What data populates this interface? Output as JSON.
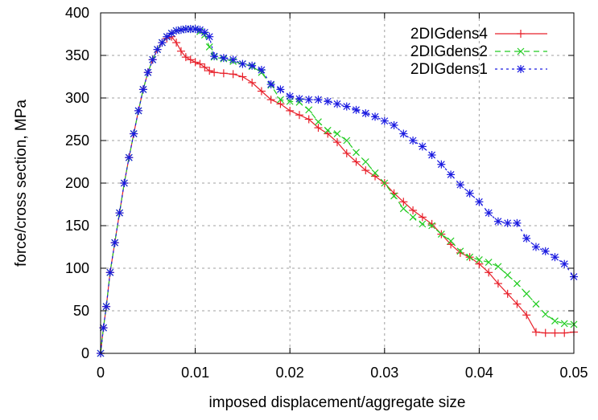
{
  "chart_data": {
    "type": "line",
    "xlabel": "imposed displacement/aggregate size",
    "ylabel": "force/cross section, MPa",
    "xlim": [
      0,
      0.05
    ],
    "ylim": [
      0,
      400
    ],
    "xticks": [
      0,
      0.01,
      0.02,
      0.03,
      0.04,
      0.05
    ],
    "xtick_labels": [
      "0",
      "0.01",
      "0.02",
      "0.03",
      "0.04",
      "0.05"
    ],
    "yticks": [
      0,
      50,
      100,
      150,
      200,
      250,
      300,
      350,
      400
    ],
    "ytick_labels": [
      "0",
      "50",
      "100",
      "150",
      "200",
      "250",
      "300",
      "350",
      "400"
    ],
    "grid": true,
    "legend_position": "top-right",
    "series": [
      {
        "name": "2DIGdens4",
        "color": "#e8202a",
        "marker": "plus",
        "line": "solid",
        "x": [
          0,
          0.0003,
          0.0006,
          0.001,
          0.0015,
          0.002,
          0.0025,
          0.003,
          0.0035,
          0.004,
          0.0045,
          0.005,
          0.0055,
          0.006,
          0.0065,
          0.007,
          0.0075,
          0.008,
          0.0085,
          0.009,
          0.0095,
          0.01,
          0.0105,
          0.011,
          0.0115,
          0.012,
          0.013,
          0.014,
          0.015,
          0.016,
          0.017,
          0.018,
          0.019,
          0.02,
          0.021,
          0.022,
          0.023,
          0.024,
          0.025,
          0.026,
          0.027,
          0.028,
          0.029,
          0.03,
          0.031,
          0.032,
          0.033,
          0.034,
          0.035,
          0.036,
          0.037,
          0.038,
          0.039,
          0.04,
          0.041,
          0.042,
          0.043,
          0.044,
          0.045,
          0.046,
          0.047,
          0.048,
          0.049,
          0.05
        ],
        "y": [
          0,
          30,
          55,
          95,
          130,
          165,
          200,
          230,
          258,
          285,
          310,
          330,
          345,
          357,
          365,
          370,
          372,
          365,
          355,
          348,
          345,
          342,
          340,
          336,
          332,
          330,
          329,
          328,
          325,
          318,
          308,
          298,
          293,
          285,
          280,
          275,
          265,
          258,
          248,
          235,
          225,
          215,
          208,
          200,
          188,
          178,
          168,
          160,
          152,
          140,
          128,
          118,
          113,
          105,
          95,
          82,
          70,
          58,
          45,
          25,
          24,
          24,
          24,
          25
        ]
      },
      {
        "name": "2DIGdens2",
        "color": "#22cc22",
        "marker": "cross",
        "line": "dashed",
        "x": [
          0,
          0.0003,
          0.0006,
          0.001,
          0.0015,
          0.002,
          0.0025,
          0.003,
          0.0035,
          0.004,
          0.0045,
          0.005,
          0.0055,
          0.006,
          0.0065,
          0.007,
          0.0075,
          0.008,
          0.0085,
          0.009,
          0.0095,
          0.01,
          0.0105,
          0.011,
          0.0115,
          0.012,
          0.013,
          0.014,
          0.015,
          0.016,
          0.017,
          0.018,
          0.019,
          0.02,
          0.021,
          0.022,
          0.023,
          0.024,
          0.025,
          0.026,
          0.027,
          0.028,
          0.029,
          0.03,
          0.031,
          0.032,
          0.033,
          0.034,
          0.035,
          0.036,
          0.037,
          0.038,
          0.039,
          0.04,
          0.041,
          0.042,
          0.043,
          0.044,
          0.045,
          0.046,
          0.047,
          0.048,
          0.049,
          0.05
        ],
        "y": [
          0,
          30,
          55,
          95,
          130,
          165,
          200,
          230,
          258,
          285,
          310,
          330,
          345,
          357,
          365,
          372,
          376,
          379,
          380,
          381,
          381,
          381,
          378,
          374,
          360,
          348,
          346,
          343,
          340,
          337,
          330,
          315,
          298,
          296,
          295,
          286,
          272,
          262,
          258,
          250,
          236,
          225,
          212,
          200,
          185,
          170,
          160,
          152,
          150,
          140,
          132,
          120,
          113,
          110,
          107,
          102,
          92,
          82,
          70,
          58,
          46,
          38,
          35,
          34
        ]
      },
      {
        "name": "2DIGdens1",
        "color": "#1a1ae0",
        "marker": "star",
        "line": "dotted",
        "x": [
          0,
          0.0003,
          0.0006,
          0.001,
          0.0015,
          0.002,
          0.0025,
          0.003,
          0.0035,
          0.004,
          0.0045,
          0.005,
          0.0055,
          0.006,
          0.0065,
          0.007,
          0.0075,
          0.008,
          0.0085,
          0.009,
          0.0095,
          0.01,
          0.0105,
          0.011,
          0.0115,
          0.012,
          0.013,
          0.014,
          0.015,
          0.016,
          0.017,
          0.018,
          0.019,
          0.02,
          0.021,
          0.022,
          0.023,
          0.024,
          0.025,
          0.026,
          0.027,
          0.028,
          0.029,
          0.03,
          0.031,
          0.032,
          0.033,
          0.034,
          0.035,
          0.036,
          0.037,
          0.038,
          0.039,
          0.04,
          0.041,
          0.042,
          0.043,
          0.044,
          0.045,
          0.046,
          0.047,
          0.048,
          0.049,
          0.05
        ],
        "y": [
          0,
          30,
          55,
          95,
          130,
          165,
          200,
          230,
          258,
          285,
          310,
          330,
          345,
          357,
          365,
          372,
          376,
          379,
          380,
          381,
          381,
          381,
          380,
          377,
          372,
          349,
          347,
          345,
          340,
          338,
          333,
          316,
          310,
          302,
          299,
          298,
          298,
          296,
          293,
          290,
          286,
          282,
          278,
          273,
          268,
          258,
          250,
          243,
          233,
          222,
          210,
          198,
          188,
          178,
          165,
          155,
          153,
          153,
          135,
          125,
          120,
          113,
          105,
          90
        ]
      }
    ]
  }
}
